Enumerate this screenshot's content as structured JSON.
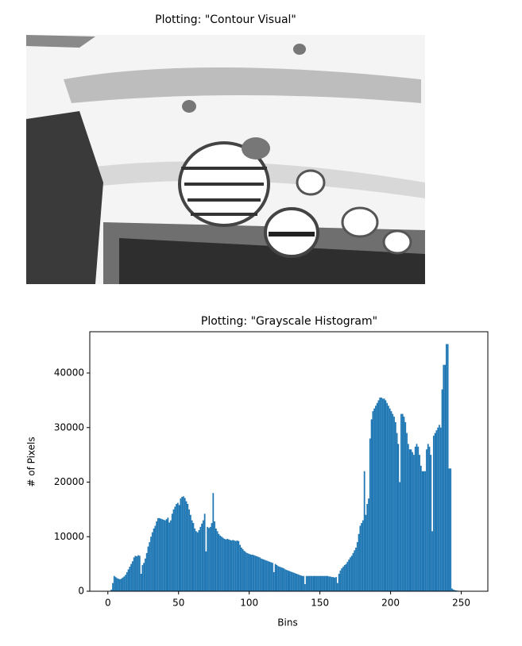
{
  "image_panel": {
    "title": "Plotting: \"Contour Visual\""
  },
  "chart_data": {
    "type": "histogram",
    "title": "Plotting: \"Grayscale Histogram\"",
    "x_label": "Bins",
    "y_label": "# of Pixels",
    "color": "#1f77b4",
    "grid": false,
    "xlim": [
      -12.8,
      268.8
    ],
    "ylim": [
      0,
      47565
    ],
    "xticks": [
      0,
      50,
      100,
      150,
      200,
      250
    ],
    "yticks": [
      0,
      10000,
      20000,
      30000,
      40000
    ],
    "bins": [
      0,
      1,
      2,
      3,
      4,
      5,
      6,
      7,
      8,
      9,
      10,
      11,
      12,
      13,
      14,
      15,
      16,
      17,
      18,
      19,
      20,
      21,
      22,
      23,
      24,
      25,
      26,
      27,
      28,
      29,
      30,
      31,
      32,
      33,
      34,
      35,
      36,
      37,
      38,
      39,
      40,
      41,
      42,
      43,
      44,
      45,
      46,
      47,
      48,
      49,
      50,
      51,
      52,
      53,
      54,
      55,
      56,
      57,
      58,
      59,
      60,
      61,
      62,
      63,
      64,
      65,
      66,
      67,
      68,
      69,
      70,
      71,
      72,
      73,
      74,
      75,
      76,
      77,
      78,
      79,
      80,
      81,
      82,
      83,
      84,
      85,
      86,
      87,
      88,
      89,
      90,
      91,
      92,
      93,
      94,
      95,
      96,
      97,
      98,
      99,
      100,
      101,
      102,
      103,
      104,
      105,
      106,
      107,
      108,
      109,
      110,
      111,
      112,
      113,
      114,
      115,
      116,
      117,
      118,
      119,
      120,
      121,
      122,
      123,
      124,
      125,
      126,
      127,
      128,
      129,
      130,
      131,
      132,
      133,
      134,
      135,
      136,
      137,
      138,
      139,
      140,
      141,
      142,
      143,
      144,
      145,
      146,
      147,
      148,
      149,
      150,
      151,
      152,
      153,
      154,
      155,
      156,
      157,
      158,
      159,
      160,
      161,
      162,
      163,
      164,
      165,
      166,
      167,
      168,
      169,
      170,
      171,
      172,
      173,
      174,
      175,
      176,
      177,
      178,
      179,
      180,
      181,
      182,
      183,
      184,
      185,
      186,
      187,
      188,
      189,
      190,
      191,
      192,
      193,
      194,
      195,
      196,
      197,
      198,
      199,
      200,
      201,
      202,
      203,
      204,
      205,
      206,
      207,
      208,
      209,
      210,
      211,
      212,
      213,
      214,
      215,
      216,
      217,
      218,
      219,
      220,
      221,
      222,
      223,
      224,
      225,
      226,
      227,
      228,
      229,
      230,
      231,
      232,
      233,
      234,
      235,
      236,
      237,
      238,
      239,
      240,
      241,
      242,
      243,
      244,
      245,
      246,
      247,
      248,
      249,
      250,
      251,
      252,
      253,
      254,
      255,
      256
    ],
    "counts": [
      0,
      0,
      300,
      1500,
      2800,
      2600,
      2400,
      2300,
      2200,
      2300,
      2500,
      2700,
      3000,
      3500,
      4000,
      4500,
      5000,
      5500,
      6200,
      6500,
      6400,
      6600,
      6500,
      3200,
      4800,
      5200,
      6000,
      7000,
      8200,
      9000,
      10000,
      10800,
      11500,
      12000,
      12800,
      13400,
      13400,
      13300,
      13200,
      13100,
      13000,
      13200,
      13500,
      12600,
      13000,
      14200,
      15000,
      15500,
      16000,
      16200,
      15800,
      17000,
      17300,
      17400,
      17100,
      16500,
      16000,
      15000,
      14000,
      13000,
      12500,
      11500,
      11000,
      10800,
      11200,
      11800,
      12400,
      13000,
      14200,
      7300,
      11800,
      11600,
      11800,
      12500,
      18000,
      12800,
      11500,
      11000,
      10500,
      10200,
      10000,
      9800,
      9600,
      9500,
      9600,
      9500,
      9400,
      9300,
      9400,
      9300,
      9200,
      9300,
      9200,
      8500,
      8000,
      7700,
      7400,
      7200,
      7000,
      6900,
      6800,
      6700,
      6700,
      6600,
      6500,
      6400,
      6300,
      6200,
      6000,
      5900,
      5800,
      5700,
      5600,
      5500,
      5400,
      5300,
      5200,
      3500,
      5000,
      4800,
      4600,
      4500,
      4400,
      4300,
      4200,
      4000,
      3900,
      3800,
      3700,
      3600,
      3500,
      3400,
      3300,
      3200,
      3100,
      3000,
      2900,
      2800,
      2800,
      1300,
      2800,
      2800,
      2800,
      2800,
      2800,
      2800,
      2800,
      2800,
      2800,
      2800,
      2800,
      2800,
      2800,
      2800,
      2800,
      2800,
      2700,
      2700,
      2600,
      2600,
      2500,
      2600,
      1500,
      3200,
      3800,
      4200,
      4500,
      4800,
      5000,
      5400,
      5800,
      6200,
      6500,
      7000,
      7500,
      8000,
      9000,
      10500,
      12000,
      12500,
      13000,
      22000,
      14000,
      16000,
      17000,
      28000,
      31500,
      33000,
      33500,
      34000,
      34500,
      35000,
      35500,
      35500,
      35300,
      35300,
      35000,
      34500,
      34000,
      33500,
      33000,
      32500,
      32000,
      31000,
      29000,
      27000,
      20000,
      32500,
      32500,
      32000,
      31000,
      29000,
      27000,
      26000,
      26000,
      25500,
      25000,
      26500,
      27000,
      26500,
      25000,
      23000,
      22000,
      22000,
      22000,
      26000,
      27000,
      26500,
      25000,
      11000,
      28500,
      29000,
      29500,
      30000,
      30500,
      30000,
      37000,
      41500,
      41500,
      45300,
      45300,
      22500,
      22500,
      500,
      300,
      200,
      150,
      100,
      50,
      0,
      0,
      0,
      0,
      0,
      0,
      0
    ]
  }
}
